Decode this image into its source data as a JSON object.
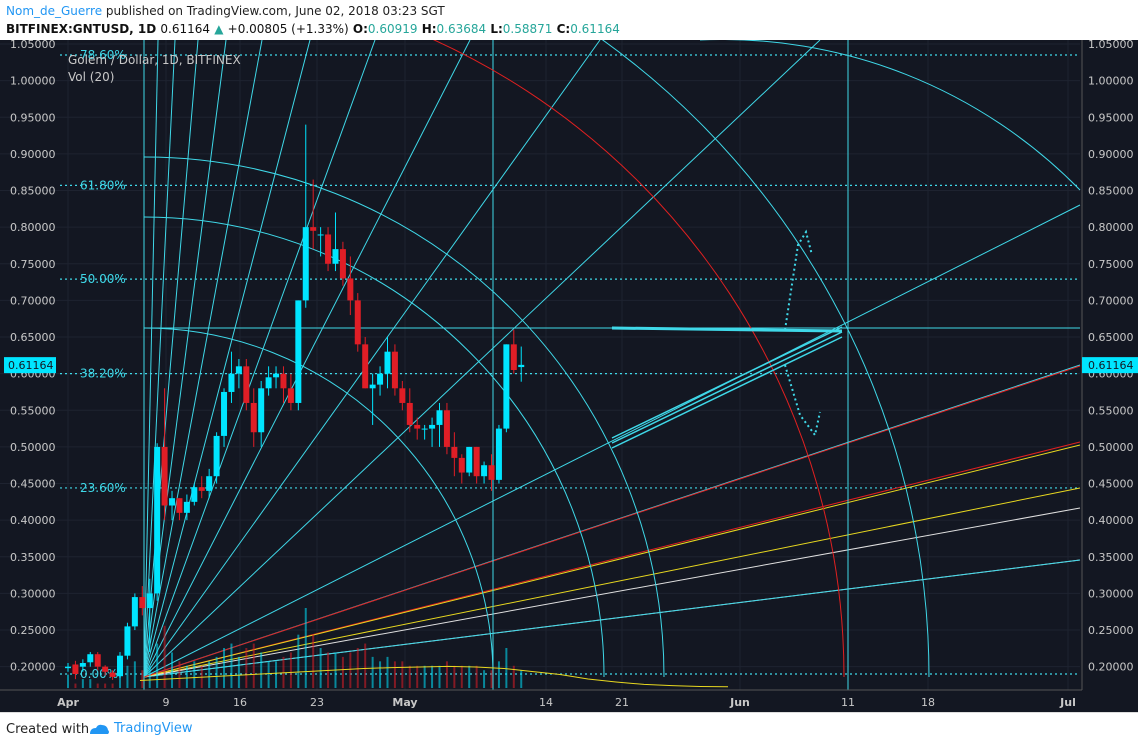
{
  "header": {
    "author": "Nom_de_Guerre",
    "published": "published on TradingView.com, June 02, 2018 03:23 SGT",
    "symbol": "BITFINEX:GNTUSD, 1D",
    "last": "0.61164",
    "change": "+0.00805 (+1.33%)",
    "open_label": "O:",
    "open": "0.60919",
    "high_label": "H:",
    "high": "0.63684",
    "low_label": "L:",
    "low": "0.58871",
    "close_label": "C:",
    "close": "0.61164"
  },
  "legend": {
    "title": "Golem / Dollar, 1D, BITFINEX",
    "volume": "Vol (20)"
  },
  "footer": {
    "created_with": "Created with",
    "brand": "TradingView"
  },
  "colors": {
    "background": "#131722",
    "up": "#00e5ff",
    "down": "#e01e26",
    "fib": "#3fd8e8",
    "red_line": "#e02020",
    "yellow_line": "#e8d820",
    "white_line": "#e0e0e0",
    "price_badge": "#00e5ff"
  },
  "chart_data": {
    "type": "candlestick",
    "ylim": [
      0.18,
      1.05
    ],
    "y_ticks": [
      "1.05000",
      "1.00000",
      "0.95000",
      "0.90000",
      "0.85000",
      "0.80000",
      "0.75000",
      "0.70000",
      "0.65000",
      "0.60000",
      "0.55000",
      "0.50000",
      "0.45000",
      "0.40000",
      "0.35000",
      "0.30000",
      "0.25000",
      "0.20000"
    ],
    "x_ticks": [
      "Apr",
      "9",
      "16",
      "23",
      "May",
      "14",
      "21",
      "Jun",
      "11",
      "18",
      "Jul"
    ],
    "current_price_label": "0.61164",
    "fib_levels": [
      {
        "label": "78.60%",
        "value": 1.035
      },
      {
        "label": "61.80%",
        "value": 0.857
      },
      {
        "label": "50.00%",
        "value": 0.729
      },
      {
        "label": "38.20%",
        "value": 0.6
      },
      {
        "label": "23.60%",
        "value": 0.444
      },
      {
        "label": "0.00%",
        "value": 0.19
      }
    ],
    "candles": [
      {
        "o": 0.198,
        "h": 0.205,
        "l": 0.193,
        "c": 0.2
      },
      {
        "o": 0.203,
        "h": 0.208,
        "l": 0.183,
        "c": 0.19
      },
      {
        "o": 0.2,
        "h": 0.21,
        "l": 0.193,
        "c": 0.205
      },
      {
        "o": 0.206,
        "h": 0.22,
        "l": 0.2,
        "c": 0.217
      },
      {
        "o": 0.217,
        "h": 0.22,
        "l": 0.195,
        "c": 0.2
      },
      {
        "o": 0.2,
        "h": 0.202,
        "l": 0.188,
        "c": 0.193
      },
      {
        "o": 0.192,
        "h": 0.195,
        "l": 0.182,
        "c": 0.186
      },
      {
        "o": 0.187,
        "h": 0.22,
        "l": 0.185,
        "c": 0.215
      },
      {
        "o": 0.215,
        "h": 0.26,
        "l": 0.21,
        "c": 0.255
      },
      {
        "o": 0.255,
        "h": 0.3,
        "l": 0.25,
        "c": 0.295
      },
      {
        "o": 0.295,
        "h": 0.31,
        "l": 0.27,
        "c": 0.28
      },
      {
        "o": 0.28,
        "h": 0.32,
        "l": 0.22,
        "c": 0.3
      },
      {
        "o": 0.3,
        "h": 0.505,
        "l": 0.29,
        "c": 0.5
      },
      {
        "o": 0.5,
        "h": 0.58,
        "l": 0.4,
        "c": 0.42
      },
      {
        "o": 0.42,
        "h": 0.44,
        "l": 0.4,
        "c": 0.43
      },
      {
        "o": 0.43,
        "h": 0.43,
        "l": 0.4,
        "c": 0.41
      },
      {
        "o": 0.41,
        "h": 0.435,
        "l": 0.4,
        "c": 0.425
      },
      {
        "o": 0.425,
        "h": 0.45,
        "l": 0.42,
        "c": 0.445
      },
      {
        "o": 0.445,
        "h": 0.46,
        "l": 0.43,
        "c": 0.44
      },
      {
        "o": 0.44,
        "h": 0.47,
        "l": 0.43,
        "c": 0.46
      },
      {
        "o": 0.46,
        "h": 0.52,
        "l": 0.45,
        "c": 0.515
      },
      {
        "o": 0.515,
        "h": 0.58,
        "l": 0.5,
        "c": 0.575
      },
      {
        "o": 0.575,
        "h": 0.63,
        "l": 0.56,
        "c": 0.6
      },
      {
        "o": 0.6,
        "h": 0.62,
        "l": 0.58,
        "c": 0.61
      },
      {
        "o": 0.61,
        "h": 0.62,
        "l": 0.55,
        "c": 0.56
      },
      {
        "o": 0.56,
        "h": 0.58,
        "l": 0.5,
        "c": 0.52
      },
      {
        "o": 0.52,
        "h": 0.59,
        "l": 0.5,
        "c": 0.58
      },
      {
        "o": 0.58,
        "h": 0.61,
        "l": 0.57,
        "c": 0.595
      },
      {
        "o": 0.595,
        "h": 0.61,
        "l": 0.58,
        "c": 0.6
      },
      {
        "o": 0.6,
        "h": 0.61,
        "l": 0.56,
        "c": 0.58
      },
      {
        "o": 0.58,
        "h": 0.6,
        "l": 0.55,
        "c": 0.56
      },
      {
        "o": 0.56,
        "h": 0.7,
        "l": 0.55,
        "c": 0.7
      },
      {
        "o": 0.7,
        "h": 0.94,
        "l": 0.69,
        "c": 0.8
      },
      {
        "o": 0.8,
        "h": 0.865,
        "l": 0.77,
        "c": 0.795
      },
      {
        "o": 0.79,
        "h": 0.8,
        "l": 0.76,
        "c": 0.79
      },
      {
        "o": 0.79,
        "h": 0.8,
        "l": 0.74,
        "c": 0.75
      },
      {
        "o": 0.75,
        "h": 0.82,
        "l": 0.74,
        "c": 0.77
      },
      {
        "o": 0.77,
        "h": 0.78,
        "l": 0.72,
        "c": 0.73
      },
      {
        "o": 0.73,
        "h": 0.76,
        "l": 0.68,
        "c": 0.7
      },
      {
        "o": 0.7,
        "h": 0.71,
        "l": 0.63,
        "c": 0.64
      },
      {
        "o": 0.64,
        "h": 0.65,
        "l": 0.58,
        "c": 0.58
      },
      {
        "o": 0.58,
        "h": 0.6,
        "l": 0.53,
        "c": 0.585
      },
      {
        "o": 0.585,
        "h": 0.61,
        "l": 0.57,
        "c": 0.6
      },
      {
        "o": 0.6,
        "h": 0.65,
        "l": 0.58,
        "c": 0.63
      },
      {
        "o": 0.63,
        "h": 0.64,
        "l": 0.57,
        "c": 0.58
      },
      {
        "o": 0.58,
        "h": 0.59,
        "l": 0.55,
        "c": 0.56
      },
      {
        "o": 0.56,
        "h": 0.58,
        "l": 0.52,
        "c": 0.53
      },
      {
        "o": 0.53,
        "h": 0.54,
        "l": 0.51,
        "c": 0.525
      },
      {
        "o": 0.525,
        "h": 0.53,
        "l": 0.51,
        "c": 0.525
      },
      {
        "o": 0.525,
        "h": 0.54,
        "l": 0.5,
        "c": 0.53
      },
      {
        "o": 0.53,
        "h": 0.56,
        "l": 0.5,
        "c": 0.55
      },
      {
        "o": 0.55,
        "h": 0.56,
        "l": 0.49,
        "c": 0.5
      },
      {
        "o": 0.5,
        "h": 0.52,
        "l": 0.46,
        "c": 0.485
      },
      {
        "o": 0.485,
        "h": 0.49,
        "l": 0.45,
        "c": 0.465
      },
      {
        "o": 0.465,
        "h": 0.5,
        "l": 0.46,
        "c": 0.5
      },
      {
        "o": 0.5,
        "h": 0.5,
        "l": 0.45,
        "c": 0.46
      },
      {
        "o": 0.46,
        "h": 0.48,
        "l": 0.45,
        "c": 0.475
      },
      {
        "o": 0.475,
        "h": 0.49,
        "l": 0.44,
        "c": 0.455
      },
      {
        "o": 0.455,
        "h": 0.53,
        "l": 0.45,
        "c": 0.525
      },
      {
        "o": 0.525,
        "h": 0.64,
        "l": 0.52,
        "c": 0.64
      },
      {
        "o": 0.64,
        "h": 0.66,
        "l": 0.6,
        "c": 0.605
      },
      {
        "o": 0.609,
        "h": 0.637,
        "l": 0.589,
        "c": 0.612
      }
    ],
    "volume": [
      3,
      1,
      2,
      2,
      1,
      1,
      1,
      4,
      5,
      6,
      4,
      5,
      10,
      14,
      8,
      6,
      5,
      6,
      5,
      6,
      7,
      9,
      10,
      7,
      9,
      10,
      8,
      6,
      6,
      7,
      8,
      12,
      18,
      12,
      9,
      8,
      8,
      7,
      8,
      9,
      10,
      7,
      6,
      7,
      6,
      6,
      5,
      5,
      5,
      5,
      5,
      6,
      5,
      5,
      5,
      5,
      4,
      4,
      6,
      9,
      5,
      4
    ],
    "volume_ma": [
      0.25,
      0.3,
      0.35,
      0.4,
      0.45,
      0.5,
      0.55,
      0.6,
      0.65,
      0.68,
      0.7,
      0.72,
      0.7,
      0.65,
      0.55,
      0.45,
      0.3,
      0.2,
      0.12,
      0.08,
      0.05,
      0.04
    ]
  }
}
